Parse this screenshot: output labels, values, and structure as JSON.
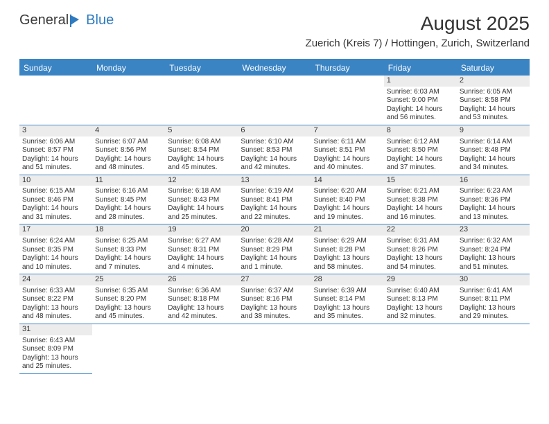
{
  "logo": {
    "text_a": "General",
    "text_b": "Blue",
    "logo_color": "#2f7bbf"
  },
  "title": "August 2025",
  "location": "Zuerich (Kreis 7) / Hottingen, Zurich, Switzerland",
  "colors": {
    "header_bg": "#3b84c4",
    "header_text": "#ffffff",
    "daynum_bg": "#ececec",
    "border": "#3b84c4",
    "text": "#333333",
    "background": "#ffffff"
  },
  "day_names": [
    "Sunday",
    "Monday",
    "Tuesday",
    "Wednesday",
    "Thursday",
    "Friday",
    "Saturday"
  ],
  "weeks": [
    [
      null,
      null,
      null,
      null,
      null,
      {
        "n": "1",
        "sr": "Sunrise: 6:03 AM",
        "ss": "Sunset: 9:00 PM",
        "d1": "Daylight: 14 hours",
        "d2": "and 56 minutes."
      },
      {
        "n": "2",
        "sr": "Sunrise: 6:05 AM",
        "ss": "Sunset: 8:58 PM",
        "d1": "Daylight: 14 hours",
        "d2": "and 53 minutes."
      }
    ],
    [
      {
        "n": "3",
        "sr": "Sunrise: 6:06 AM",
        "ss": "Sunset: 8:57 PM",
        "d1": "Daylight: 14 hours",
        "d2": "and 51 minutes."
      },
      {
        "n": "4",
        "sr": "Sunrise: 6:07 AM",
        "ss": "Sunset: 8:56 PM",
        "d1": "Daylight: 14 hours",
        "d2": "and 48 minutes."
      },
      {
        "n": "5",
        "sr": "Sunrise: 6:08 AM",
        "ss": "Sunset: 8:54 PM",
        "d1": "Daylight: 14 hours",
        "d2": "and 45 minutes."
      },
      {
        "n": "6",
        "sr": "Sunrise: 6:10 AM",
        "ss": "Sunset: 8:53 PM",
        "d1": "Daylight: 14 hours",
        "d2": "and 42 minutes."
      },
      {
        "n": "7",
        "sr": "Sunrise: 6:11 AM",
        "ss": "Sunset: 8:51 PM",
        "d1": "Daylight: 14 hours",
        "d2": "and 40 minutes."
      },
      {
        "n": "8",
        "sr": "Sunrise: 6:12 AM",
        "ss": "Sunset: 8:50 PM",
        "d1": "Daylight: 14 hours",
        "d2": "and 37 minutes."
      },
      {
        "n": "9",
        "sr": "Sunrise: 6:14 AM",
        "ss": "Sunset: 8:48 PM",
        "d1": "Daylight: 14 hours",
        "d2": "and 34 minutes."
      }
    ],
    [
      {
        "n": "10",
        "sr": "Sunrise: 6:15 AM",
        "ss": "Sunset: 8:46 PM",
        "d1": "Daylight: 14 hours",
        "d2": "and 31 minutes."
      },
      {
        "n": "11",
        "sr": "Sunrise: 6:16 AM",
        "ss": "Sunset: 8:45 PM",
        "d1": "Daylight: 14 hours",
        "d2": "and 28 minutes."
      },
      {
        "n": "12",
        "sr": "Sunrise: 6:18 AM",
        "ss": "Sunset: 8:43 PM",
        "d1": "Daylight: 14 hours",
        "d2": "and 25 minutes."
      },
      {
        "n": "13",
        "sr": "Sunrise: 6:19 AM",
        "ss": "Sunset: 8:41 PM",
        "d1": "Daylight: 14 hours",
        "d2": "and 22 minutes."
      },
      {
        "n": "14",
        "sr": "Sunrise: 6:20 AM",
        "ss": "Sunset: 8:40 PM",
        "d1": "Daylight: 14 hours",
        "d2": "and 19 minutes."
      },
      {
        "n": "15",
        "sr": "Sunrise: 6:21 AM",
        "ss": "Sunset: 8:38 PM",
        "d1": "Daylight: 14 hours",
        "d2": "and 16 minutes."
      },
      {
        "n": "16",
        "sr": "Sunrise: 6:23 AM",
        "ss": "Sunset: 8:36 PM",
        "d1": "Daylight: 14 hours",
        "d2": "and 13 minutes."
      }
    ],
    [
      {
        "n": "17",
        "sr": "Sunrise: 6:24 AM",
        "ss": "Sunset: 8:35 PM",
        "d1": "Daylight: 14 hours",
        "d2": "and 10 minutes."
      },
      {
        "n": "18",
        "sr": "Sunrise: 6:25 AM",
        "ss": "Sunset: 8:33 PM",
        "d1": "Daylight: 14 hours",
        "d2": "and 7 minutes."
      },
      {
        "n": "19",
        "sr": "Sunrise: 6:27 AM",
        "ss": "Sunset: 8:31 PM",
        "d1": "Daylight: 14 hours",
        "d2": "and 4 minutes."
      },
      {
        "n": "20",
        "sr": "Sunrise: 6:28 AM",
        "ss": "Sunset: 8:29 PM",
        "d1": "Daylight: 14 hours",
        "d2": "and 1 minute."
      },
      {
        "n": "21",
        "sr": "Sunrise: 6:29 AM",
        "ss": "Sunset: 8:28 PM",
        "d1": "Daylight: 13 hours",
        "d2": "and 58 minutes."
      },
      {
        "n": "22",
        "sr": "Sunrise: 6:31 AM",
        "ss": "Sunset: 8:26 PM",
        "d1": "Daylight: 13 hours",
        "d2": "and 54 minutes."
      },
      {
        "n": "23",
        "sr": "Sunrise: 6:32 AM",
        "ss": "Sunset: 8:24 PM",
        "d1": "Daylight: 13 hours",
        "d2": "and 51 minutes."
      }
    ],
    [
      {
        "n": "24",
        "sr": "Sunrise: 6:33 AM",
        "ss": "Sunset: 8:22 PM",
        "d1": "Daylight: 13 hours",
        "d2": "and 48 minutes."
      },
      {
        "n": "25",
        "sr": "Sunrise: 6:35 AM",
        "ss": "Sunset: 8:20 PM",
        "d1": "Daylight: 13 hours",
        "d2": "and 45 minutes."
      },
      {
        "n": "26",
        "sr": "Sunrise: 6:36 AM",
        "ss": "Sunset: 8:18 PM",
        "d1": "Daylight: 13 hours",
        "d2": "and 42 minutes."
      },
      {
        "n": "27",
        "sr": "Sunrise: 6:37 AM",
        "ss": "Sunset: 8:16 PM",
        "d1": "Daylight: 13 hours",
        "d2": "and 38 minutes."
      },
      {
        "n": "28",
        "sr": "Sunrise: 6:39 AM",
        "ss": "Sunset: 8:14 PM",
        "d1": "Daylight: 13 hours",
        "d2": "and 35 minutes."
      },
      {
        "n": "29",
        "sr": "Sunrise: 6:40 AM",
        "ss": "Sunset: 8:13 PM",
        "d1": "Daylight: 13 hours",
        "d2": "and 32 minutes."
      },
      {
        "n": "30",
        "sr": "Sunrise: 6:41 AM",
        "ss": "Sunset: 8:11 PM",
        "d1": "Daylight: 13 hours",
        "d2": "and 29 minutes."
      }
    ],
    [
      {
        "n": "31",
        "sr": "Sunrise: 6:43 AM",
        "ss": "Sunset: 8:09 PM",
        "d1": "Daylight: 13 hours",
        "d2": "and 25 minutes."
      },
      null,
      null,
      null,
      null,
      null,
      null
    ]
  ]
}
